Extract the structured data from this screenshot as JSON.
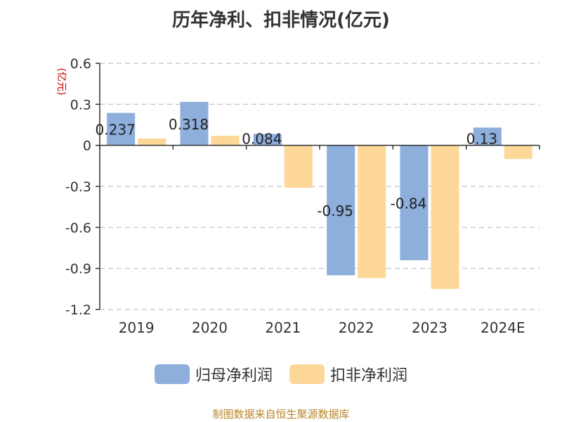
{
  "title": "历年净利、扣非情况(亿元)",
  "source": "制图数据来自恒生聚源数据库",
  "colors": {
    "series1": "#8eaedc",
    "series2": "#fdd899",
    "ylabel": "#cc0000",
    "text": "#333333",
    "grid": "#cccccc"
  },
  "chart_data": {
    "type": "bar",
    "title": "历年净利、扣非情况(亿元)",
    "ylabel": "(亿元)",
    "xlabel": "",
    "categories": [
      "2019",
      "2020",
      "2021",
      "2022",
      "2023",
      "2024E"
    ],
    "ylim": [
      -1.2,
      0.6
    ],
    "yticks": [
      0.6,
      0.3,
      0,
      -0.3,
      -0.6,
      -0.9,
      -1.2
    ],
    "ytick_labels": [
      "0.6",
      "0.3",
      "0",
      "-0.3",
      "-0.6",
      "-0.9",
      "-1.2"
    ],
    "grid": true,
    "legend_position": "bottom",
    "series": [
      {
        "name": "归母净利润",
        "values": [
          0.237,
          0.318,
          0.084,
          -0.95,
          -0.84,
          0.13
        ],
        "labels": [
          "0.237",
          "0.318",
          "0.084",
          "-0.95",
          "-0.84",
          "0.13"
        ]
      },
      {
        "name": "扣非净利润",
        "values": [
          0.05,
          0.07,
          -0.31,
          -0.97,
          -1.05,
          -0.1
        ]
      }
    ]
  }
}
